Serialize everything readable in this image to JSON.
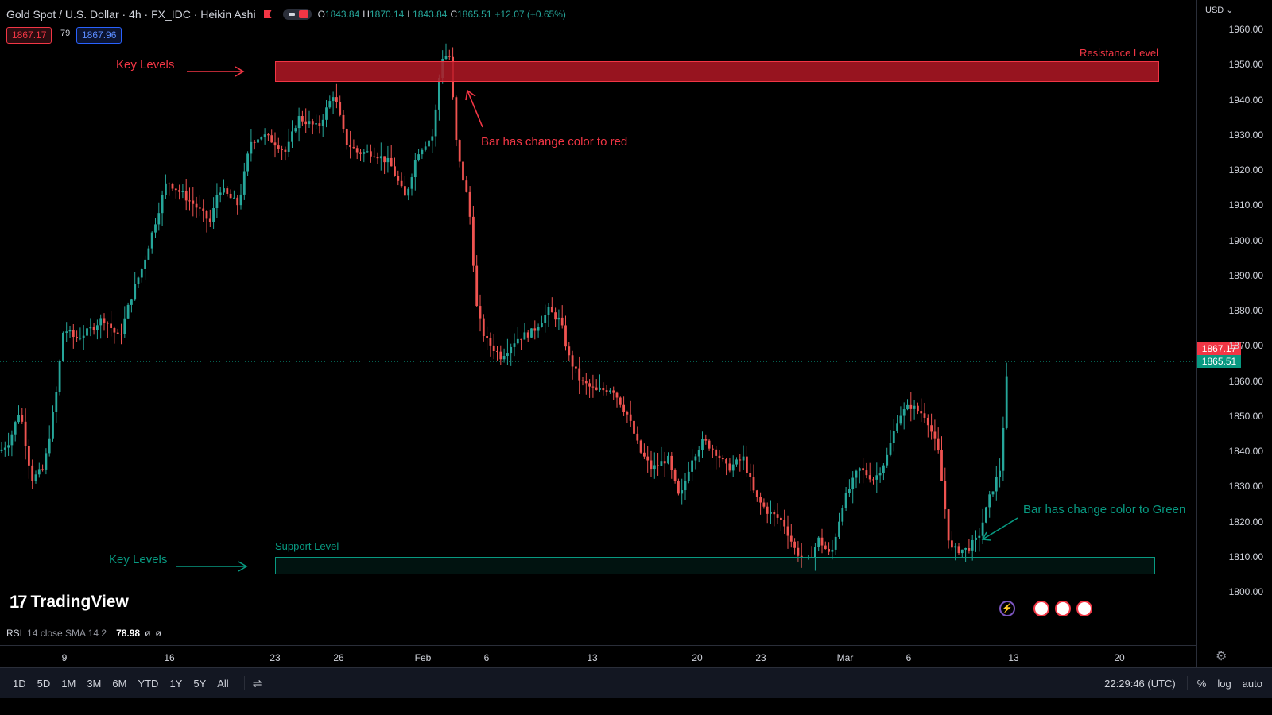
{
  "header": {
    "symbol_line": "Gold Spot / U.S. Dollar · 4h · FX_IDC · Heikin Ashi",
    "ohlc": [
      {
        "k": "O",
        "v": "1843.84"
      },
      {
        "k": "H",
        "v": "1870.14"
      },
      {
        "k": "L",
        "v": "1843.84"
      },
      {
        "k": "C",
        "v": "1865.51"
      },
      {
        "k": "",
        "v": "+12.07 (+0.65%)"
      }
    ],
    "bid": "1867.17",
    "spread": "79",
    "ask": "1867.96"
  },
  "price_scale": {
    "currency": "USD",
    "ticks": [
      "1960.00",
      "1950.00",
      "1940.00",
      "1930.00",
      "1920.00",
      "1910.00",
      "1900.00",
      "1890.00",
      "1880.00",
      "1870.00",
      "1860.00",
      "1850.00",
      "1840.00",
      "1830.00",
      "1820.00",
      "1810.00",
      "1800.00"
    ],
    "last_red": "1867.17",
    "last_green": "1865.51"
  },
  "annotations": {
    "key_levels_top": "Key Levels",
    "key_levels_bottom": "Key Levels",
    "resistance": "Resistance Level",
    "support": "Support Level",
    "bar_red": "Bar has change color to red",
    "bar_green": "Bar has change color to Green"
  },
  "logo": "TradingView",
  "rsi": {
    "name": "RSI",
    "params": "14 close SMA 14 2",
    "value": "78.98",
    "extra1": "ø",
    "extra2": "ø"
  },
  "time_axis": [
    "9",
    "16",
    "23",
    "26",
    "Feb",
    "6",
    "13",
    "20",
    "23",
    "Mar",
    "6",
    "13",
    "20"
  ],
  "bottom_bar": {
    "ranges": [
      "1D",
      "5D",
      "1M",
      "3M",
      "6M",
      "YTD",
      "1Y",
      "5Y",
      "All"
    ],
    "clock": "22:29:46 (UTC)",
    "percent": "%",
    "log": "log",
    "auto": "auto"
  },
  "colors": {
    "up": "#26a69a",
    "down": "#ef5350",
    "resistance": "#f23645",
    "support": "#089981",
    "annot_red": "#f23645",
    "annot_green": "#089981"
  },
  "chart_data": {
    "type": "candlestick",
    "series_name": "Gold Spot / U.S. Dollar",
    "ylim": [
      1795,
      1965
    ],
    "resistance_zone": [
      1945,
      1951
    ],
    "support_zone": [
      1805,
      1810
    ],
    "anchors": [
      [
        0,
        1840
      ],
      [
        12,
        1843
      ],
      [
        25,
        1852
      ],
      [
        40,
        1832
      ],
      [
        55,
        1835
      ],
      [
        70,
        1855
      ],
      [
        80,
        1875
      ],
      [
        95,
        1872
      ],
      [
        110,
        1874
      ],
      [
        130,
        1878
      ],
      [
        150,
        1872
      ],
      [
        165,
        1884
      ],
      [
        180,
        1893
      ],
      [
        195,
        1905
      ],
      [
        210,
        1917
      ],
      [
        225,
        1914
      ],
      [
        245,
        1910
      ],
      [
        265,
        1905
      ],
      [
        275,
        1915
      ],
      [
        300,
        1910
      ],
      [
        315,
        1928
      ],
      [
        330,
        1930
      ],
      [
        345,
        1928
      ],
      [
        360,
        1925
      ],
      [
        375,
        1935
      ],
      [
        400,
        1932
      ],
      [
        420,
        1942
      ],
      [
        435,
        1928
      ],
      [
        450,
        1925
      ],
      [
        470,
        1925
      ],
      [
        490,
        1922
      ],
      [
        510,
        1912
      ],
      [
        525,
        1925
      ],
      [
        545,
        1930
      ],
      [
        555,
        1952
      ],
      [
        565,
        1953
      ],
      [
        575,
        1925
      ],
      [
        590,
        1910
      ],
      [
        600,
        1880
      ],
      [
        610,
        1872
      ],
      [
        630,
        1867
      ],
      [
        650,
        1872
      ],
      [
        670,
        1874
      ],
      [
        690,
        1880
      ],
      [
        705,
        1877
      ],
      [
        715,
        1867
      ],
      [
        730,
        1860
      ],
      [
        750,
        1857
      ],
      [
        770,
        1858
      ],
      [
        790,
        1850
      ],
      [
        805,
        1840
      ],
      [
        820,
        1835
      ],
      [
        840,
        1838
      ],
      [
        855,
        1826
      ],
      [
        870,
        1838
      ],
      [
        885,
        1843
      ],
      [
        900,
        1840
      ],
      [
        915,
        1835
      ],
      [
        935,
        1838
      ],
      [
        950,
        1827
      ],
      [
        965,
        1823
      ],
      [
        985,
        1820
      ],
      [
        1000,
        1812
      ],
      [
        1015,
        1808
      ],
      [
        1030,
        1815
      ],
      [
        1045,
        1810
      ],
      [
        1060,
        1825
      ],
      [
        1080,
        1835
      ],
      [
        1100,
        1832
      ],
      [
        1115,
        1838
      ],
      [
        1130,
        1850
      ],
      [
        1145,
        1853
      ],
      [
        1165,
        1850
      ],
      [
        1180,
        1840
      ],
      [
        1195,
        1812
      ],
      [
        1215,
        1812
      ],
      [
        1230,
        1815
      ],
      [
        1245,
        1827
      ],
      [
        1258,
        1835
      ],
      [
        1268,
        1866
      ]
    ],
    "time_ticks": [
      "9",
      "16",
      "23",
      "26",
      "Feb",
      "6",
      "13",
      "20",
      "23",
      "Mar",
      "6",
      "13",
      "20"
    ]
  }
}
